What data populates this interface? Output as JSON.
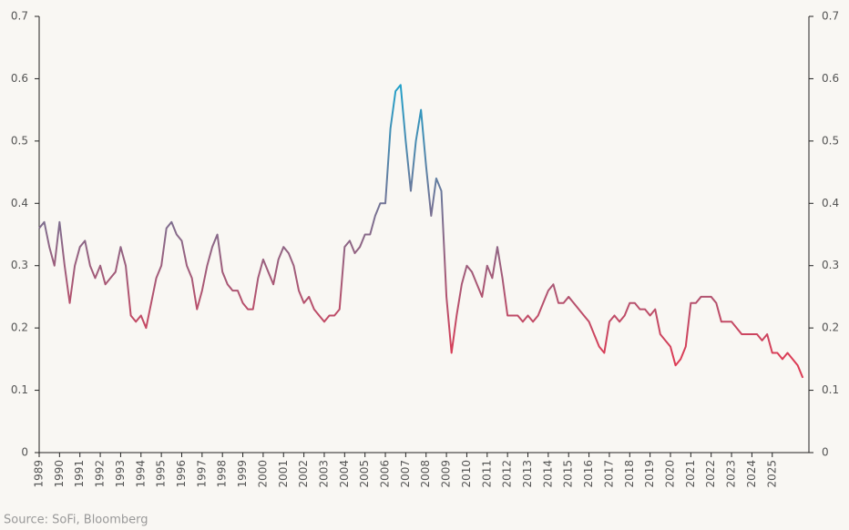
{
  "chart_data": {
    "type": "line",
    "source": "Source: SoFi, Bloomberg",
    "x": [
      1989,
      1989.25,
      1989.5,
      1989.75,
      1990,
      1990.25,
      1990.5,
      1990.75,
      1991,
      1991.25,
      1991.5,
      1991.75,
      1992,
      1992.25,
      1992.5,
      1992.75,
      1993,
      1993.25,
      1993.5,
      1993.75,
      1994,
      1994.25,
      1994.5,
      1994.75,
      1995,
      1995.25,
      1995.5,
      1995.75,
      1996,
      1996.25,
      1996.5,
      1996.75,
      1997,
      1997.25,
      1997.5,
      1997.75,
      1998,
      1998.25,
      1998.5,
      1998.75,
      1999,
      1999.25,
      1999.5,
      1999.75,
      2000,
      2000.25,
      2000.5,
      2000.75,
      2001,
      2001.25,
      2001.5,
      2001.75,
      2002,
      2002.25,
      2002.5,
      2002.75,
      2003,
      2003.25,
      2003.5,
      2003.75,
      2004,
      2004.25,
      2004.5,
      2004.75,
      2005,
      2005.25,
      2005.5,
      2005.75,
      2006,
      2006.25,
      2006.5,
      2006.75,
      2007,
      2007.25,
      2007.5,
      2007.75,
      2008,
      2008.25,
      2008.5,
      2008.75,
      2009,
      2009.25,
      2009.5,
      2009.75,
      2010,
      2010.25,
      2010.5,
      2010.75,
      2011,
      2011.25,
      2011.5,
      2011.75,
      2012,
      2012.25,
      2012.5,
      2012.75,
      2013,
      2013.25,
      2013.5,
      2013.75,
      2014,
      2014.25,
      2014.5,
      2014.75,
      2015,
      2015.25,
      2015.5,
      2015.75,
      2016,
      2016.25,
      2016.5,
      2016.75,
      2017,
      2017.25,
      2017.5,
      2017.75,
      2018,
      2018.25,
      2018.5,
      2018.75,
      2019,
      2019.25,
      2019.5,
      2019.75,
      2020,
      2020.25,
      2020.5,
      2020.75,
      2021,
      2021.25,
      2021.5,
      2021.75,
      2022,
      2022.25,
      2022.5,
      2022.75,
      2023,
      2023.25,
      2023.5,
      2023.75,
      2024,
      2024.25,
      2024.5,
      2024.75,
      2025,
      2025.25,
      2025.5,
      2025.75,
      2026,
      2026.25,
      2026.5
    ],
    "values": [
      0.36,
      0.37,
      0.33,
      0.3,
      0.37,
      0.3,
      0.24,
      0.3,
      0.33,
      0.34,
      0.3,
      0.28,
      0.3,
      0.27,
      0.28,
      0.29,
      0.33,
      0.3,
      0.22,
      0.21,
      0.22,
      0.2,
      0.24,
      0.28,
      0.3,
      0.36,
      0.37,
      0.35,
      0.34,
      0.3,
      0.28,
      0.23,
      0.26,
      0.3,
      0.33,
      0.35,
      0.29,
      0.27,
      0.26,
      0.26,
      0.24,
      0.23,
      0.23,
      0.28,
      0.31,
      0.29,
      0.27,
      0.31,
      0.33,
      0.32,
      0.3,
      0.26,
      0.24,
      0.25,
      0.23,
      0.22,
      0.21,
      0.22,
      0.22,
      0.23,
      0.33,
      0.34,
      0.32,
      0.33,
      0.35,
      0.35,
      0.38,
      0.4,
      0.4,
      0.52,
      0.58,
      0.59,
      0.5,
      0.42,
      0.5,
      0.55,
      0.46,
      0.38,
      0.44,
      0.42,
      0.25,
      0.16,
      0.22,
      0.27,
      0.3,
      0.29,
      0.27,
      0.25,
      0.3,
      0.28,
      0.33,
      0.28,
      0.22,
      0.22,
      0.22,
      0.21,
      0.22,
      0.21,
      0.22,
      0.24,
      0.26,
      0.27,
      0.24,
      0.24,
      0.25,
      0.24,
      0.23,
      0.22,
      0.21,
      0.19,
      0.17,
      0.16,
      0.21,
      0.22,
      0.21,
      0.22,
      0.24,
      0.24,
      0.23,
      0.23,
      0.22,
      0.23,
      0.19,
      0.18,
      0.17,
      0.14,
      0.15,
      0.17,
      0.24,
      0.24,
      0.25,
      0.25,
      0.25,
      0.24,
      0.21,
      0.21,
      0.21,
      0.2,
      0.19,
      0.19,
      0.19,
      0.19,
      0.18,
      0.19,
      0.16,
      0.16,
      0.15,
      0.16,
      0.15,
      0.14,
      0.12
    ],
    "color_scale": [
      {
        "value": 0.15,
        "color": "#dc3c55"
      },
      {
        "value": 0.6,
        "color": "#1ea3cc"
      }
    ],
    "xlim": [
      1989,
      2026.8
    ],
    "xticks": [
      1989,
      1990,
      1991,
      1992,
      1993,
      1994,
      1995,
      1996,
      1997,
      1998,
      1999,
      2000,
      2001,
      2002,
      2003,
      2004,
      2005,
      2006,
      2007,
      2008,
      2009,
      2010,
      2011,
      2012,
      2013,
      2014,
      2015,
      2016,
      2017,
      2018,
      2019,
      2020,
      2021,
      2022,
      2023,
      2024,
      2025
    ],
    "ylim": [
      0,
      0.7
    ],
    "yticks": [
      0,
      0.1,
      0.2,
      0.3,
      0.4,
      0.5,
      0.6,
      0.7
    ],
    "y2lim": [
      0,
      0.7
    ],
    "y2ticks": [
      0,
      0.1,
      0.2,
      0.3,
      0.4,
      0.5,
      0.6,
      0.7
    ]
  }
}
